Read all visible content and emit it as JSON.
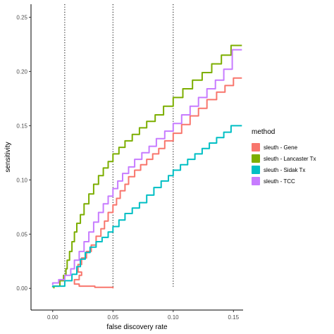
{
  "chart_data": {
    "type": "line",
    "title": "",
    "xlabel": "false discovery rate",
    "ylabel": "sensitivity",
    "xlim": [
      -0.018,
      0.158
    ],
    "ylim": [
      -0.02,
      0.262
    ],
    "x_ticks": [
      0.0,
      0.05,
      0.1,
      0.15
    ],
    "x_tick_labels": [
      "0.00",
      "0.05",
      "0.10",
      "0.15"
    ],
    "y_ticks": [
      0.0,
      0.05,
      0.1,
      0.15,
      0.2,
      0.25
    ],
    "y_tick_labels": [
      "0.00",
      "0.05",
      "0.10",
      "0.15",
      "0.20",
      "0.25"
    ],
    "grid": false,
    "reference_lines": [
      0.01,
      0.05,
      0.1
    ],
    "reference_line_style": "dotted",
    "legend": {
      "title": "method",
      "placement": "right"
    },
    "series": [
      {
        "name": "sleuth - Gene",
        "color": "#F8766D",
        "points": [
          [
            0.05,
            0.0
          ],
          [
            0.035,
            0.001
          ],
          [
            0.022,
            0.002
          ],
          [
            0.018,
            0.004
          ],
          [
            0.022,
            0.008
          ],
          [
            0.024,
            0.012
          ],
          [
            0.021,
            0.015
          ],
          [
            0.024,
            0.022
          ],
          [
            0.028,
            0.028
          ],
          [
            0.032,
            0.034
          ],
          [
            0.036,
            0.04
          ],
          [
            0.04,
            0.048
          ],
          [
            0.043,
            0.055
          ],
          [
            0.046,
            0.062
          ],
          [
            0.05,
            0.07
          ],
          [
            0.053,
            0.077
          ],
          [
            0.056,
            0.083
          ],
          [
            0.06,
            0.09
          ],
          [
            0.063,
            0.096
          ],
          [
            0.068,
            0.103
          ],
          [
            0.073,
            0.109
          ],
          [
            0.078,
            0.114
          ],
          [
            0.083,
            0.119
          ],
          [
            0.088,
            0.124
          ],
          [
            0.093,
            0.129
          ],
          [
            0.1,
            0.136
          ],
          [
            0.107,
            0.143
          ],
          [
            0.114,
            0.151
          ],
          [
            0.121,
            0.159
          ],
          [
            0.128,
            0.166
          ],
          [
            0.136,
            0.174
          ],
          [
            0.143,
            0.181
          ],
          [
            0.15,
            0.187
          ],
          [
            0.157,
            0.194
          ]
        ]
      },
      {
        "name": "sleuth - Lancaster Tx",
        "color": "#7CAE00",
        "points": [
          [
            0.001,
            0.0
          ],
          [
            0.006,
            0.002
          ],
          [
            0.009,
            0.007
          ],
          [
            0.011,
            0.012
          ],
          [
            0.012,
            0.018
          ],
          [
            0.014,
            0.026
          ],
          [
            0.016,
            0.034
          ],
          [
            0.018,
            0.043
          ],
          [
            0.02,
            0.052
          ],
          [
            0.023,
            0.06
          ],
          [
            0.026,
            0.068
          ],
          [
            0.03,
            0.078
          ],
          [
            0.034,
            0.087
          ],
          [
            0.038,
            0.096
          ],
          [
            0.042,
            0.104
          ],
          [
            0.046,
            0.111
          ],
          [
            0.05,
            0.117
          ],
          [
            0.055,
            0.124
          ],
          [
            0.06,
            0.13
          ],
          [
            0.066,
            0.136
          ],
          [
            0.072,
            0.142
          ],
          [
            0.078,
            0.148
          ],
          [
            0.085,
            0.154
          ],
          [
            0.092,
            0.16
          ],
          [
            0.1,
            0.168
          ],
          [
            0.108,
            0.176
          ],
          [
            0.116,
            0.184
          ],
          [
            0.124,
            0.192
          ],
          [
            0.132,
            0.199
          ],
          [
            0.14,
            0.207
          ],
          [
            0.148,
            0.215
          ],
          [
            0.157,
            0.224
          ]
        ]
      },
      {
        "name": "sleuth - Sidak Tx",
        "color": "#00BFC4",
        "points": [
          [
            0.0,
            0.001
          ],
          [
            0.01,
            0.002
          ],
          [
            0.016,
            0.007
          ],
          [
            0.02,
            0.013
          ],
          [
            0.023,
            0.02
          ],
          [
            0.027,
            0.027
          ],
          [
            0.031,
            0.033
          ],
          [
            0.036,
            0.038
          ],
          [
            0.041,
            0.043
          ],
          [
            0.046,
            0.047
          ],
          [
            0.05,
            0.052
          ],
          [
            0.055,
            0.057
          ],
          [
            0.06,
            0.063
          ],
          [
            0.066,
            0.069
          ],
          [
            0.072,
            0.074
          ],
          [
            0.078,
            0.079
          ],
          [
            0.084,
            0.086
          ],
          [
            0.09,
            0.093
          ],
          [
            0.096,
            0.099
          ],
          [
            0.1,
            0.104
          ],
          [
            0.106,
            0.109
          ],
          [
            0.112,
            0.114
          ],
          [
            0.118,
            0.119
          ],
          [
            0.124,
            0.124
          ],
          [
            0.13,
            0.129
          ],
          [
            0.136,
            0.134
          ],
          [
            0.142,
            0.139
          ],
          [
            0.148,
            0.144
          ],
          [
            0.157,
            0.15
          ]
        ]
      },
      {
        "name": "sleuth - TCC",
        "color": "#C77CFF",
        "points": [
          [
            0.0,
            0.003
          ],
          [
            0.005,
            0.005
          ],
          [
            0.01,
            0.008
          ],
          [
            0.015,
            0.012
          ],
          [
            0.018,
            0.018
          ],
          [
            0.022,
            0.026
          ],
          [
            0.026,
            0.034
          ],
          [
            0.03,
            0.043
          ],
          [
            0.034,
            0.052
          ],
          [
            0.038,
            0.061
          ],
          [
            0.042,
            0.07
          ],
          [
            0.046,
            0.078
          ],
          [
            0.05,
            0.085
          ],
          [
            0.054,
            0.092
          ],
          [
            0.058,
            0.099
          ],
          [
            0.063,
            0.106
          ],
          [
            0.068,
            0.112
          ],
          [
            0.074,
            0.119
          ],
          [
            0.08,
            0.125
          ],
          [
            0.086,
            0.131
          ],
          [
            0.093,
            0.138
          ],
          [
            0.1,
            0.145
          ],
          [
            0.107,
            0.152
          ],
          [
            0.114,
            0.16
          ],
          [
            0.121,
            0.168
          ],
          [
            0.128,
            0.176
          ],
          [
            0.135,
            0.184
          ],
          [
            0.142,
            0.192
          ],
          [
            0.149,
            0.202
          ],
          [
            0.157,
            0.22
          ]
        ]
      }
    ]
  }
}
